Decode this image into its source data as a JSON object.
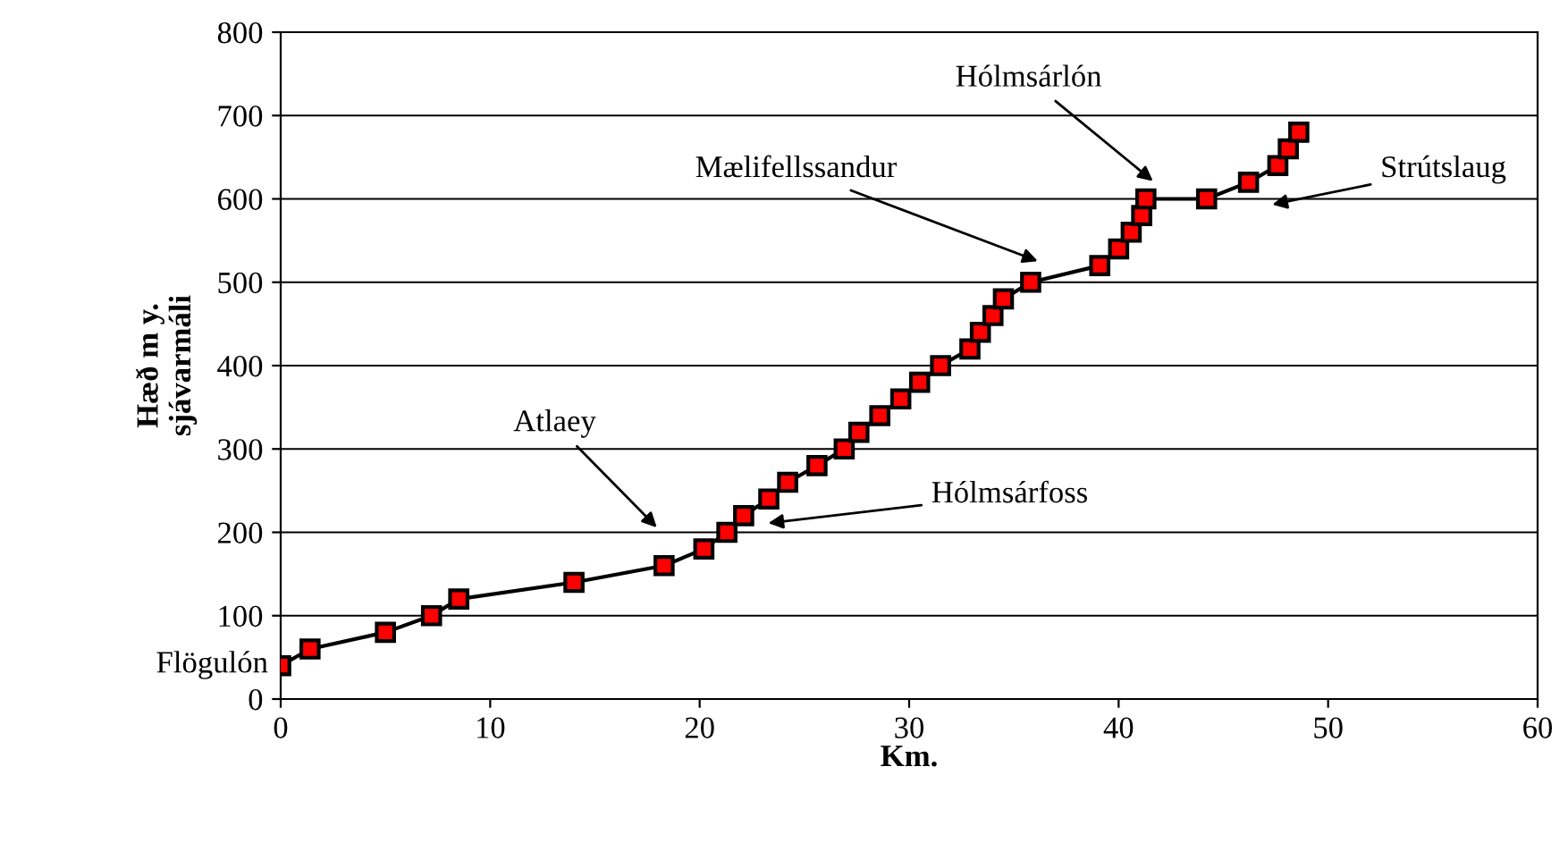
{
  "chart_data": {
    "type": "line",
    "xlabel": "Km.",
    "ylabel": "Hæð m y.\nsjávarmáli",
    "x": [
      0,
      1.4,
      5,
      7.2,
      8.5,
      14,
      18.3,
      20.2,
      21.3,
      22.1,
      23.3,
      24.2,
      25.6,
      26.9,
      27.6,
      28.6,
      29.6,
      30.5,
      31.5,
      32.9,
      33.4,
      34,
      34.5,
      35.8,
      39.1,
      40,
      40.6,
      41.1,
      41.3,
      44.2,
      46.2,
      47.6,
      48.1,
      48.6
    ],
    "series": [
      {
        "color": "#ff0000",
        "values": [
          40,
          60,
          80,
          100,
          120,
          140,
          160,
          180,
          200,
          220,
          240,
          260,
          280,
          300,
          320,
          340,
          360,
          380,
          400,
          420,
          440,
          460,
          480,
          500,
          520,
          540,
          560,
          580,
          600,
          600,
          620,
          640,
          660,
          680
        ]
      }
    ],
    "xlim": [
      0,
      60
    ],
    "ylim": [
      0,
      800
    ],
    "xticks": [
      0,
      10,
      20,
      30,
      40,
      50,
      60
    ],
    "yticks": [
      0,
      100,
      200,
      300,
      400,
      500,
      600,
      700,
      800
    ],
    "grid": "y",
    "marker": "square",
    "line_style": "solid",
    "legend": false,
    "annotations": [
      "Flögulón",
      "Atlaey",
      "Hólmsárfoss",
      "Mælifellssandur",
      "Hólmsárlón",
      "Strútslaug"
    ]
  }
}
